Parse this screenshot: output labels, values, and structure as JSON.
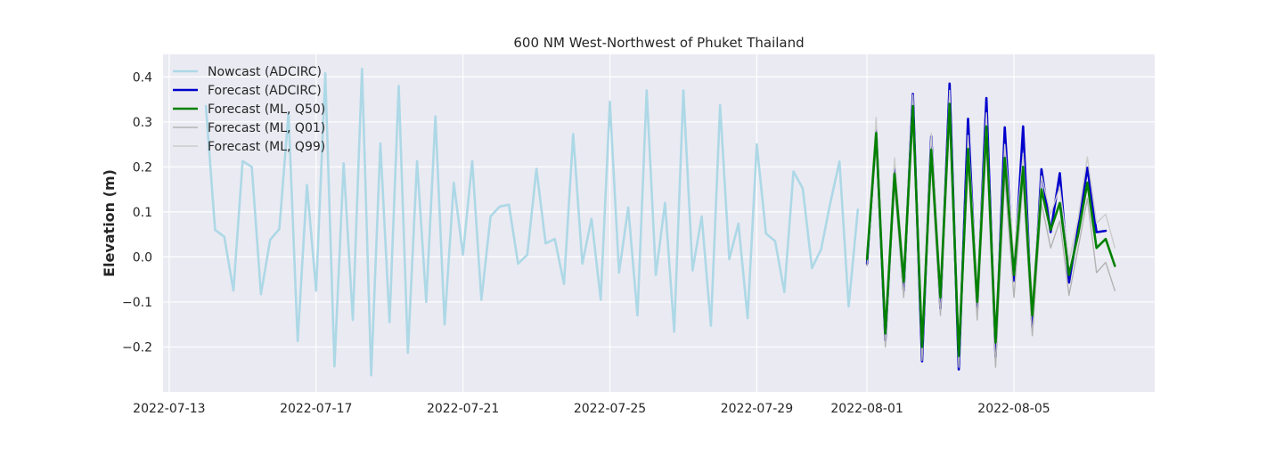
{
  "chart_data": {
    "type": "line",
    "title": "600 NM West-Northwest of Phuket Thailand",
    "xlabel": "",
    "ylabel": "Elevation (m)",
    "x_axis": {
      "type": "date",
      "range": [
        "2022-07-12T20:00",
        "2022-08-08T20:00"
      ],
      "tick_dates": [
        "2022-07-13",
        "2022-07-17",
        "2022-07-21",
        "2022-07-25",
        "2022-07-29",
        "2022-08-01",
        "2022-08-05"
      ]
    },
    "ylim": [
      -0.3,
      0.45
    ],
    "y_ticks": [
      -0.2,
      -0.1,
      0.0,
      0.1,
      0.2,
      0.3,
      0.4
    ],
    "y_tick_labels": [
      "−0.2",
      "−0.1",
      "0.0",
      "0.1",
      "0.2",
      "0.3",
      "0.4"
    ],
    "grid": true,
    "legend_position": "top-left",
    "series": [
      {
        "name": "Nowcast (ADCIRC)",
        "color": "#add8e6",
        "points": [
          [
            "2022-07-14T00:00",
            0.335
          ],
          [
            "2022-07-14T06:00",
            0.06
          ],
          [
            "2022-07-14T12:00",
            0.045
          ],
          [
            "2022-07-14T18:00",
            -0.075
          ],
          [
            "2022-07-15T00:00",
            0.213
          ],
          [
            "2022-07-15T06:00",
            0.2
          ],
          [
            "2022-07-15T12:00",
            -0.083
          ],
          [
            "2022-07-15T18:00",
            0.038
          ],
          [
            "2022-07-16T00:00",
            0.062
          ],
          [
            "2022-07-16T06:00",
            0.32
          ],
          [
            "2022-07-16T12:00",
            -0.187
          ],
          [
            "2022-07-16T18:00",
            0.16
          ],
          [
            "2022-07-17T00:00",
            -0.075
          ],
          [
            "2022-07-17T06:00",
            0.408
          ],
          [
            "2022-07-17T12:00",
            -0.243
          ],
          [
            "2022-07-17T18:00",
            0.208
          ],
          [
            "2022-07-18T00:00",
            -0.14
          ],
          [
            "2022-07-18T06:00",
            0.418
          ],
          [
            "2022-07-18T12:00",
            -0.263
          ],
          [
            "2022-07-18T18:00",
            0.252
          ],
          [
            "2022-07-19T00:00",
            -0.145
          ],
          [
            "2022-07-19T06:00",
            0.38
          ],
          [
            "2022-07-19T12:00",
            -0.213
          ],
          [
            "2022-07-19T18:00",
            0.213
          ],
          [
            "2022-07-20T00:00",
            -0.1
          ],
          [
            "2022-07-20T06:00",
            0.312
          ],
          [
            "2022-07-20T12:00",
            -0.15
          ],
          [
            "2022-07-20T18:00",
            0.165
          ],
          [
            "2022-07-21T00:00",
            0.005
          ],
          [
            "2022-07-21T06:00",
            0.213
          ],
          [
            "2022-07-21T12:00",
            -0.095
          ],
          [
            "2022-07-21T18:00",
            0.09
          ],
          [
            "2022-07-22T00:00",
            0.112
          ],
          [
            "2022-07-22T06:00",
            0.116
          ],
          [
            "2022-07-22T12:00",
            -0.015
          ],
          [
            "2022-07-22T18:00",
            0.005
          ],
          [
            "2022-07-23T00:00",
            0.196
          ],
          [
            "2022-07-23T06:00",
            0.03
          ],
          [
            "2022-07-23T12:00",
            0.04
          ],
          [
            "2022-07-23T18:00",
            -0.06
          ],
          [
            "2022-07-24T00:00",
            0.273
          ],
          [
            "2022-07-24T06:00",
            -0.015
          ],
          [
            "2022-07-24T12:00",
            0.085
          ],
          [
            "2022-07-24T18:00",
            -0.095
          ],
          [
            "2022-07-25T00:00",
            0.345
          ],
          [
            "2022-07-25T06:00",
            -0.035
          ],
          [
            "2022-07-25T12:00",
            0.11
          ],
          [
            "2022-07-25T18:00",
            -0.13
          ],
          [
            "2022-07-26T00:00",
            0.37
          ],
          [
            "2022-07-26T06:00",
            -0.04
          ],
          [
            "2022-07-26T12:00",
            0.12
          ],
          [
            "2022-07-26T18:00",
            -0.166
          ],
          [
            "2022-07-27T00:00",
            0.37
          ],
          [
            "2022-07-27T06:00",
            -0.03
          ],
          [
            "2022-07-27T12:00",
            0.09
          ],
          [
            "2022-07-27T18:00",
            -0.153
          ],
          [
            "2022-07-28T00:00",
            0.337
          ],
          [
            "2022-07-28T06:00",
            -0.005
          ],
          [
            "2022-07-28T12:00",
            0.074
          ],
          [
            "2022-07-28T18:00",
            -0.136
          ],
          [
            "2022-07-29T00:00",
            0.25
          ],
          [
            "2022-07-29T06:00",
            0.052
          ],
          [
            "2022-07-29T12:00",
            0.035
          ],
          [
            "2022-07-29T18:00",
            -0.078
          ],
          [
            "2022-07-30T00:00",
            0.19
          ],
          [
            "2022-07-30T06:00",
            0.152
          ],
          [
            "2022-07-30T12:00",
            -0.025
          ],
          [
            "2022-07-30T18:00",
            0.017
          ],
          [
            "2022-07-31T00:00",
            0.12
          ],
          [
            "2022-07-31T06:00",
            0.212
          ],
          [
            "2022-07-31T12:00",
            -0.11
          ],
          [
            "2022-07-31T18:00",
            0.105
          ]
        ]
      },
      {
        "name": "Forecast (ADCIRC)",
        "color": "#0000cc",
        "points": [
          [
            "2022-08-01T00:00",
            -0.015
          ],
          [
            "2022-08-01T06:00",
            0.28
          ],
          [
            "2022-08-01T12:00",
            -0.185
          ],
          [
            "2022-08-01T18:00",
            0.195
          ],
          [
            "2022-08-02T00:00",
            -0.075
          ],
          [
            "2022-08-02T06:00",
            0.362
          ],
          [
            "2022-08-02T12:00",
            -0.232
          ],
          [
            "2022-08-02T18:00",
            0.268
          ],
          [
            "2022-08-03T00:00",
            -0.115
          ],
          [
            "2022-08-03T06:00",
            0.385
          ],
          [
            "2022-08-03T12:00",
            -0.25
          ],
          [
            "2022-08-03T18:00",
            0.307
          ],
          [
            "2022-08-04T00:00",
            -0.115
          ],
          [
            "2022-08-04T06:00",
            0.353
          ],
          [
            "2022-08-04T12:00",
            -0.222
          ],
          [
            "2022-08-04T18:00",
            0.288
          ],
          [
            "2022-08-05T00:00",
            -0.053
          ],
          [
            "2022-08-05T06:00",
            0.29
          ],
          [
            "2022-08-05T12:00",
            -0.156
          ],
          [
            "2022-08-05T18:00",
            0.195
          ],
          [
            "2022-08-06T00:00",
            0.055
          ],
          [
            "2022-08-06T06:00",
            0.186
          ],
          [
            "2022-08-06T12:00",
            -0.057
          ],
          [
            "2022-08-06T18:00",
            0.065
          ],
          [
            "2022-08-07T00:00",
            0.198
          ],
          [
            "2022-08-07T06:00",
            0.055
          ],
          [
            "2022-08-07T12:00",
            0.058
          ]
        ]
      },
      {
        "name": "Forecast (ML, Q50)",
        "color": "#008000",
        "points": [
          [
            "2022-08-01T00:00",
            -0.005
          ],
          [
            "2022-08-01T06:00",
            0.275
          ],
          [
            "2022-08-01T12:00",
            -0.17
          ],
          [
            "2022-08-01T18:00",
            0.185
          ],
          [
            "2022-08-02T00:00",
            -0.055
          ],
          [
            "2022-08-02T06:00",
            0.335
          ],
          [
            "2022-08-02T12:00",
            -0.2
          ],
          [
            "2022-08-02T18:00",
            0.238
          ],
          [
            "2022-08-03T00:00",
            -0.09
          ],
          [
            "2022-08-03T06:00",
            0.34
          ],
          [
            "2022-08-03T12:00",
            -0.22
          ],
          [
            "2022-08-03T18:00",
            0.24
          ],
          [
            "2022-08-04T00:00",
            -0.1
          ],
          [
            "2022-08-04T06:00",
            0.29
          ],
          [
            "2022-08-04T12:00",
            -0.19
          ],
          [
            "2022-08-04T18:00",
            0.22
          ],
          [
            "2022-08-05T00:00",
            -0.04
          ],
          [
            "2022-08-05T06:00",
            0.2
          ],
          [
            "2022-08-05T12:00",
            -0.13
          ],
          [
            "2022-08-05T18:00",
            0.15
          ],
          [
            "2022-08-06T00:00",
            0.06
          ],
          [
            "2022-08-06T06:00",
            0.12
          ],
          [
            "2022-08-06T12:00",
            -0.04
          ],
          [
            "2022-08-06T18:00",
            0.05
          ],
          [
            "2022-08-07T00:00",
            0.165
          ],
          [
            "2022-08-07T06:00",
            0.02
          ],
          [
            "2022-08-07T12:00",
            0.04
          ],
          [
            "2022-08-07T18:00",
            -0.02
          ]
        ]
      },
      {
        "name": "Forecast (ML, Q01)",
        "color": "#b3b3b3",
        "points": [
          [
            "2022-08-01T00:00",
            -0.02
          ],
          [
            "2022-08-01T06:00",
            0.25
          ],
          [
            "2022-08-01T12:00",
            -0.2
          ],
          [
            "2022-08-01T18:00",
            0.16
          ],
          [
            "2022-08-02T00:00",
            -0.09
          ],
          [
            "2022-08-02T06:00",
            0.31
          ],
          [
            "2022-08-02T12:00",
            -0.23
          ],
          [
            "2022-08-02T18:00",
            0.21
          ],
          [
            "2022-08-03T00:00",
            -0.13
          ],
          [
            "2022-08-03T06:00",
            0.31
          ],
          [
            "2022-08-03T12:00",
            -0.245
          ],
          [
            "2022-08-03T18:00",
            0.21
          ],
          [
            "2022-08-04T00:00",
            -0.14
          ],
          [
            "2022-08-04T06:00",
            0.26
          ],
          [
            "2022-08-04T12:00",
            -0.245
          ],
          [
            "2022-08-04T18:00",
            0.18
          ],
          [
            "2022-08-05T00:00",
            -0.09
          ],
          [
            "2022-08-05T06:00",
            0.17
          ],
          [
            "2022-08-05T12:00",
            -0.175
          ],
          [
            "2022-08-05T18:00",
            0.12
          ],
          [
            "2022-08-06T00:00",
            0.02
          ],
          [
            "2022-08-06T06:00",
            0.08
          ],
          [
            "2022-08-06T12:00",
            -0.085
          ],
          [
            "2022-08-06T18:00",
            0.02
          ],
          [
            "2022-08-07T00:00",
            0.13
          ],
          [
            "2022-08-07T06:00",
            -0.035
          ],
          [
            "2022-08-07T12:00",
            -0.012
          ],
          [
            "2022-08-07T18:00",
            -0.075
          ]
        ]
      },
      {
        "name": "Forecast (ML, Q99)",
        "color": "#cccccc",
        "points": [
          [
            "2022-08-01T00:00",
            0.01
          ],
          [
            "2022-08-01T06:00",
            0.31
          ],
          [
            "2022-08-01T12:00",
            -0.15
          ],
          [
            "2022-08-01T18:00",
            0.22
          ],
          [
            "2022-08-02T00:00",
            -0.03
          ],
          [
            "2022-08-02T06:00",
            0.36
          ],
          [
            "2022-08-02T12:00",
            -0.175
          ],
          [
            "2022-08-02T18:00",
            0.275
          ],
          [
            "2022-08-03T00:00",
            -0.06
          ],
          [
            "2022-08-03T06:00",
            0.37
          ],
          [
            "2022-08-03T12:00",
            -0.195
          ],
          [
            "2022-08-03T18:00",
            0.27
          ],
          [
            "2022-08-04T00:00",
            -0.06
          ],
          [
            "2022-08-04T06:00",
            0.32
          ],
          [
            "2022-08-04T12:00",
            -0.16
          ],
          [
            "2022-08-04T18:00",
            0.25
          ],
          [
            "2022-08-05T00:00",
            0.0
          ],
          [
            "2022-08-05T06:00",
            0.23
          ],
          [
            "2022-08-05T12:00",
            -0.1
          ],
          [
            "2022-08-05T18:00",
            0.18
          ],
          [
            "2022-08-06T00:00",
            0.095
          ],
          [
            "2022-08-06T06:00",
            0.155
          ],
          [
            "2022-08-06T12:00",
            -0.01
          ],
          [
            "2022-08-06T18:00",
            0.085
          ],
          [
            "2022-08-07T00:00",
            0.222
          ],
          [
            "2022-08-07T06:00",
            0.075
          ],
          [
            "2022-08-07T12:00",
            0.095
          ],
          [
            "2022-08-07T18:00",
            0.02
          ]
        ]
      }
    ]
  }
}
